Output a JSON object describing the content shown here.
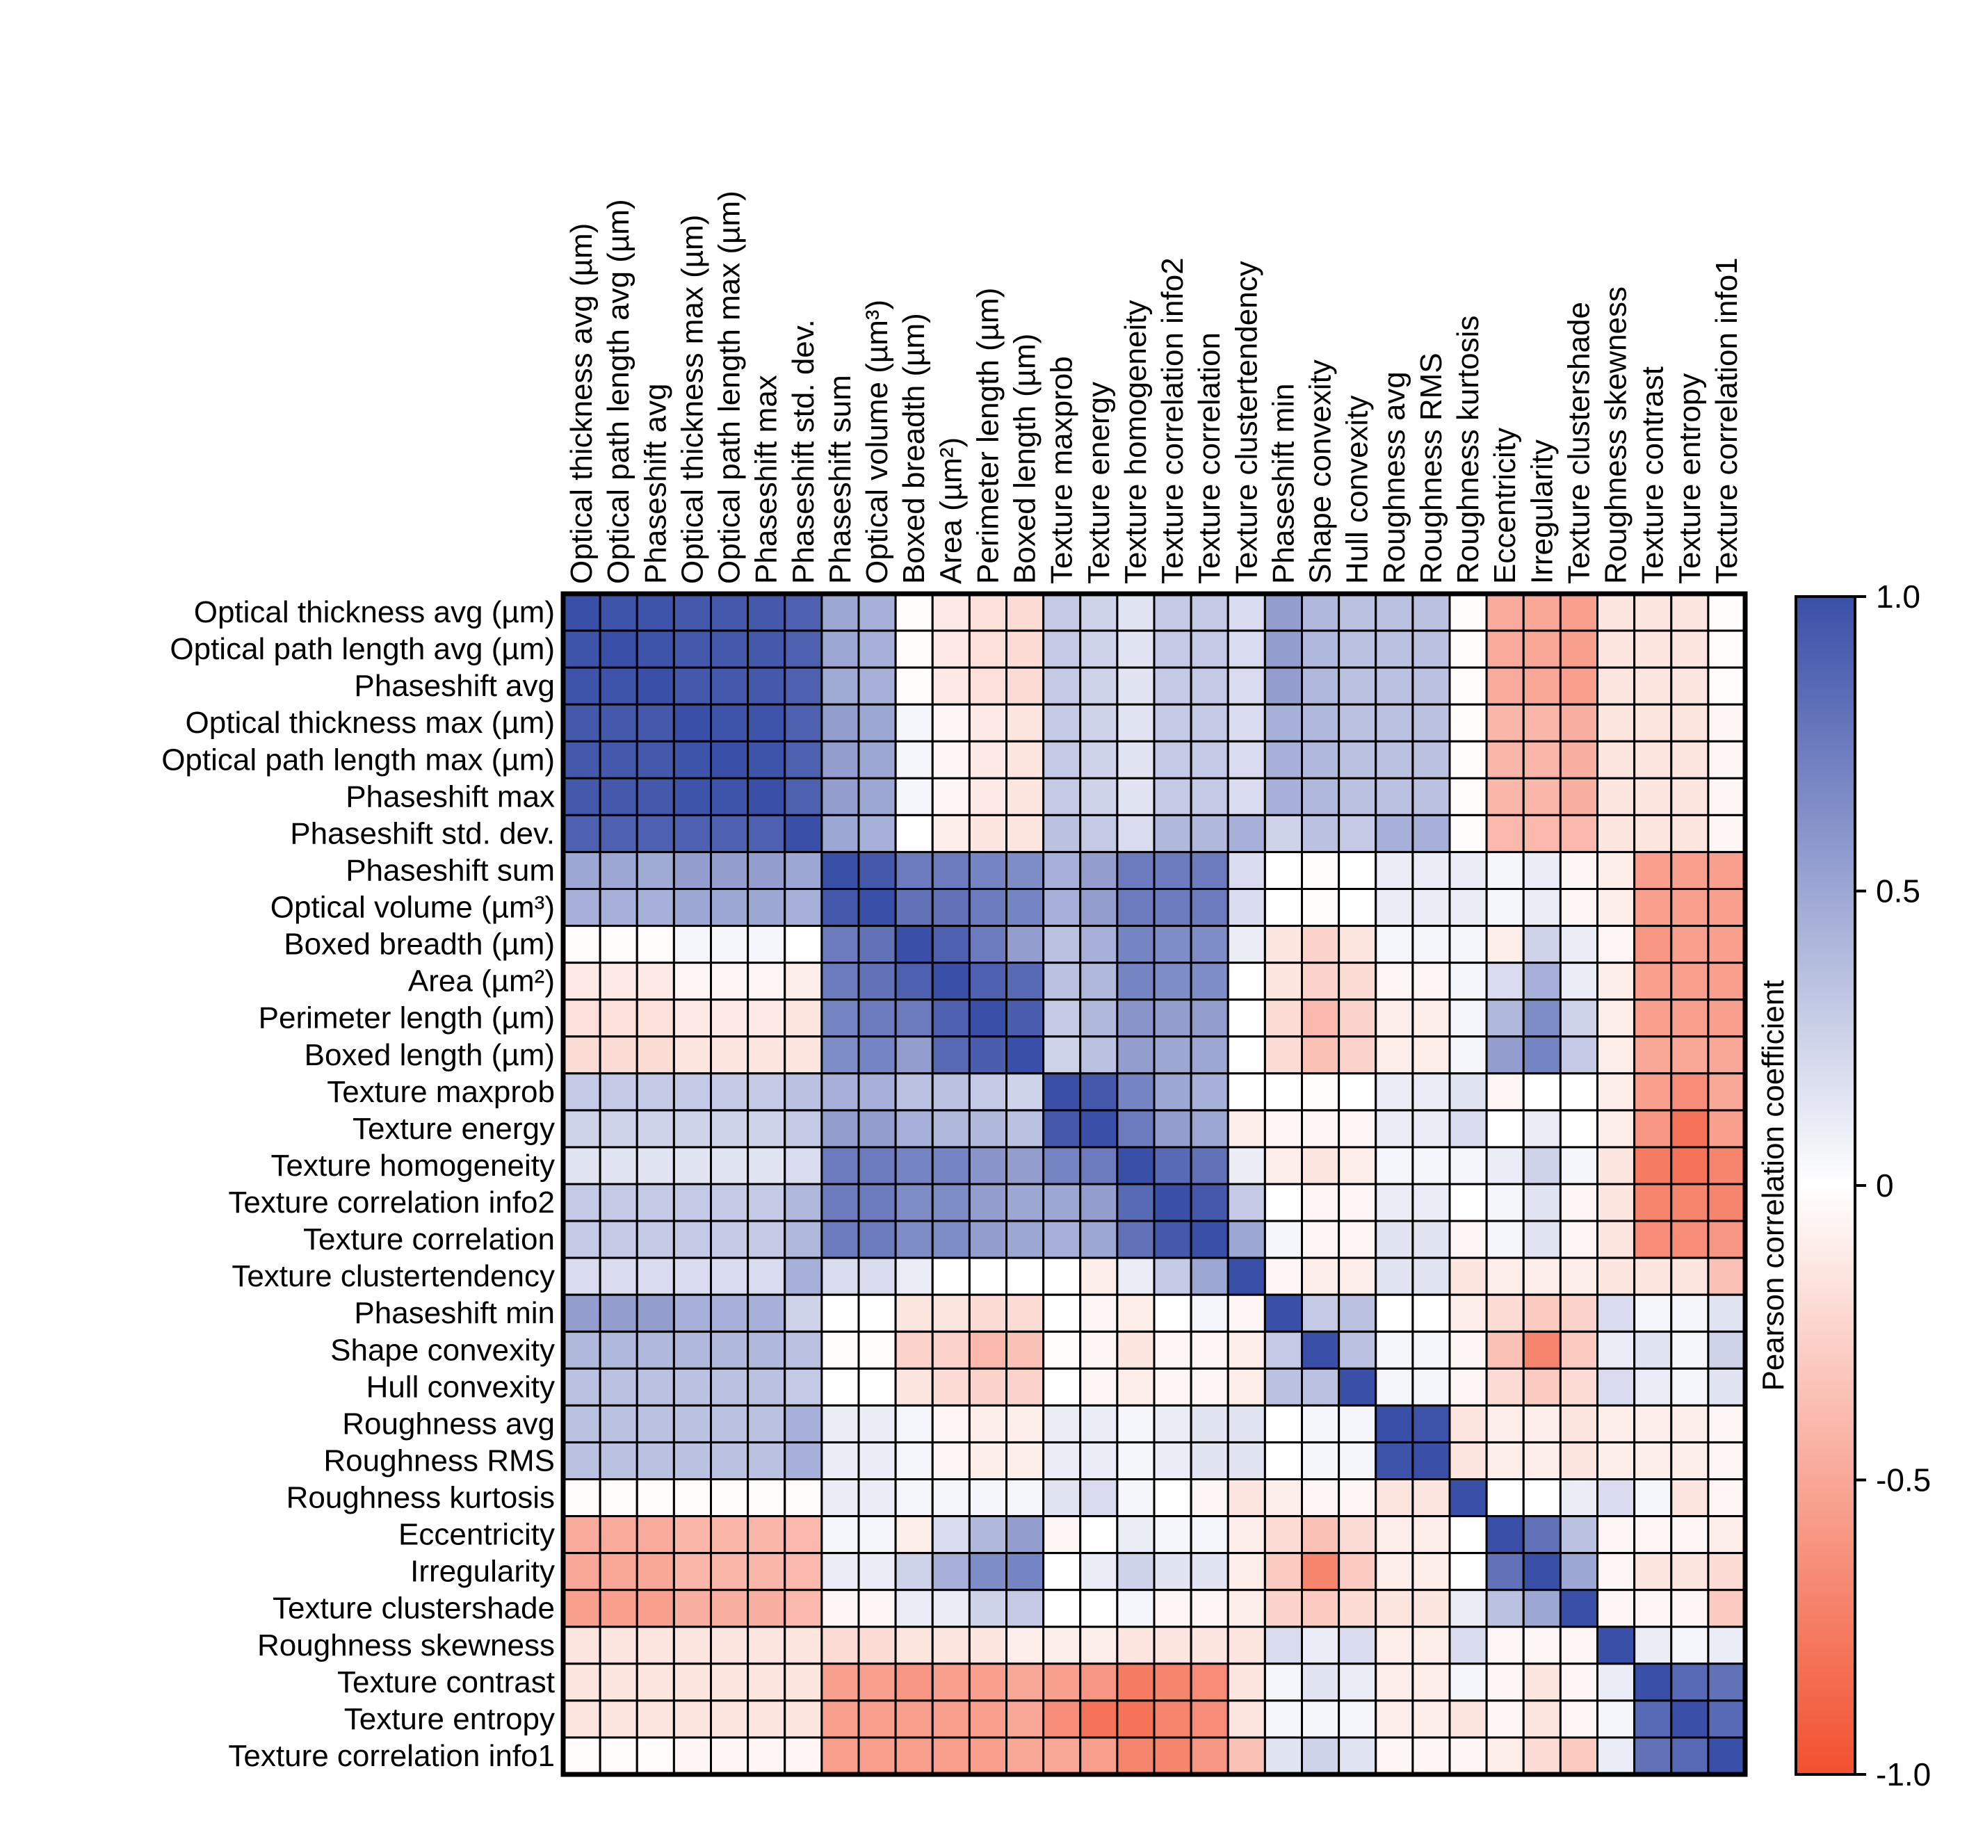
{
  "chart_data": {
    "type": "heatmap",
    "title": "",
    "labels": [
      "Optical thickness avg (µm)",
      "Optical path length avg (µm)",
      "Phaseshift avg",
      "Optical thickness max (µm)",
      "Optical path length max (µm)",
      "Phaseshift max",
      "Phaseshift std. dev.",
      "Phaseshift sum",
      "Optical volume (µm³)",
      "Boxed breadth (µm)",
      "Area (µm²)",
      "Perimeter length (µm)",
      "Boxed length (µm)",
      "Texture maxprob",
      "Texture energy",
      "Texture homogeneity",
      "Texture correlation info2",
      "Texture correlation",
      "Texture clustertendency",
      "Phaseshift min",
      "Shape convexity",
      "Hull convexity",
      "Roughness avg",
      "Roughness RMS",
      "Roughness kurtosis",
      "Eccentricity",
      "Irregularity",
      "Texture clustershade",
      "Roughness skewness",
      "Texture contrast",
      "Texture entropy",
      "Texture correlation info1"
    ],
    "matrix": [
      [
        1.0,
        0.98,
        0.98,
        0.95,
        0.95,
        0.95,
        0.9,
        0.5,
        0.45,
        -0.02,
        -0.12,
        -0.18,
        -0.2,
        0.3,
        0.25,
        0.15,
        0.3,
        0.3,
        0.2,
        0.55,
        0.4,
        0.35,
        0.35,
        0.35,
        -0.02,
        -0.48,
        -0.5,
        -0.55,
        -0.15,
        -0.15,
        -0.15,
        -0.02
      ],
      [
        0.98,
        1.0,
        0.98,
        0.95,
        0.95,
        0.95,
        0.9,
        0.5,
        0.45,
        -0.02,
        -0.12,
        -0.18,
        -0.2,
        0.3,
        0.25,
        0.15,
        0.3,
        0.3,
        0.2,
        0.55,
        0.4,
        0.35,
        0.35,
        0.35,
        -0.02,
        -0.48,
        -0.5,
        -0.55,
        -0.15,
        -0.15,
        -0.15,
        -0.02
      ],
      [
        0.98,
        0.98,
        1.0,
        0.95,
        0.95,
        0.95,
        0.9,
        0.48,
        0.45,
        -0.02,
        -0.12,
        -0.18,
        -0.2,
        0.3,
        0.25,
        0.15,
        0.3,
        0.3,
        0.2,
        0.55,
        0.4,
        0.35,
        0.35,
        0.35,
        -0.02,
        -0.48,
        -0.5,
        -0.55,
        -0.15,
        -0.15,
        -0.15,
        -0.02
      ],
      [
        0.95,
        0.95,
        0.95,
        1.0,
        0.98,
        0.98,
        0.9,
        0.55,
        0.5,
        0.05,
        -0.05,
        -0.12,
        -0.15,
        0.3,
        0.25,
        0.15,
        0.3,
        0.3,
        0.2,
        0.45,
        0.4,
        0.35,
        0.35,
        0.35,
        -0.02,
        -0.42,
        -0.42,
        -0.45,
        -0.15,
        -0.15,
        -0.15,
        -0.05
      ],
      [
        0.95,
        0.95,
        0.95,
        0.98,
        1.0,
        0.98,
        0.9,
        0.55,
        0.5,
        0.05,
        -0.05,
        -0.12,
        -0.15,
        0.3,
        0.25,
        0.15,
        0.3,
        0.3,
        0.2,
        0.45,
        0.4,
        0.35,
        0.35,
        0.35,
        -0.02,
        -0.42,
        -0.42,
        -0.45,
        -0.15,
        -0.15,
        -0.15,
        -0.05
      ],
      [
        0.95,
        0.95,
        0.95,
        0.98,
        0.98,
        1.0,
        0.9,
        0.55,
        0.5,
        0.05,
        -0.05,
        -0.12,
        -0.15,
        0.3,
        0.25,
        0.15,
        0.3,
        0.3,
        0.2,
        0.45,
        0.4,
        0.35,
        0.35,
        0.35,
        -0.02,
        -0.42,
        -0.42,
        -0.45,
        -0.15,
        -0.15,
        -0.15,
        -0.05
      ],
      [
        0.9,
        0.9,
        0.9,
        0.9,
        0.9,
        0.9,
        1.0,
        0.5,
        0.45,
        0.0,
        -0.1,
        -0.15,
        -0.15,
        0.35,
        0.3,
        0.2,
        0.4,
        0.4,
        0.45,
        0.25,
        0.35,
        0.3,
        0.45,
        0.45,
        -0.02,
        -0.4,
        -0.4,
        -0.4,
        -0.15,
        -0.15,
        -0.15,
        -0.05
      ],
      [
        0.5,
        0.5,
        0.48,
        0.55,
        0.55,
        0.55,
        0.5,
        1.0,
        0.95,
        0.75,
        0.75,
        0.7,
        0.65,
        0.45,
        0.55,
        0.75,
        0.75,
        0.75,
        0.2,
        0.0,
        -0.02,
        0.0,
        0.1,
        0.1,
        0.1,
        0.05,
        0.1,
        -0.05,
        -0.1,
        -0.55,
        -0.55,
        -0.55
      ],
      [
        0.45,
        0.45,
        0.45,
        0.5,
        0.5,
        0.5,
        0.45,
        0.95,
        1.0,
        0.8,
        0.8,
        0.75,
        0.7,
        0.45,
        0.55,
        0.75,
        0.75,
        0.75,
        0.2,
        0.0,
        -0.02,
        0.0,
        0.1,
        0.1,
        0.1,
        0.05,
        0.1,
        -0.05,
        -0.1,
        -0.55,
        -0.55,
        -0.55
      ],
      [
        -0.02,
        -0.02,
        -0.02,
        0.05,
        0.05,
        0.05,
        0.0,
        0.75,
        0.8,
        1.0,
        0.9,
        0.75,
        0.55,
        0.35,
        0.45,
        0.7,
        0.65,
        0.65,
        0.1,
        -0.15,
        -0.25,
        -0.15,
        0.05,
        0.05,
        0.05,
        -0.1,
        0.25,
        0.1,
        -0.05,
        -0.6,
        -0.55,
        -0.55
      ],
      [
        -0.12,
        -0.12,
        -0.12,
        -0.05,
        -0.05,
        -0.05,
        -0.1,
        0.75,
        0.8,
        0.9,
        1.0,
        0.9,
        0.85,
        0.35,
        0.4,
        0.7,
        0.65,
        0.65,
        0.0,
        -0.15,
        -0.25,
        -0.2,
        -0.05,
        -0.05,
        0.05,
        0.2,
        0.45,
        0.1,
        -0.1,
        -0.55,
        -0.55,
        -0.55
      ],
      [
        -0.18,
        -0.18,
        -0.18,
        -0.12,
        -0.12,
        -0.12,
        -0.15,
        0.7,
        0.75,
        0.75,
        0.9,
        1.0,
        0.92,
        0.3,
        0.4,
        0.6,
        0.55,
        0.55,
        0.0,
        -0.2,
        -0.4,
        -0.25,
        -0.1,
        -0.1,
        0.05,
        0.4,
        0.65,
        0.25,
        -0.1,
        -0.55,
        -0.55,
        -0.55
      ],
      [
        -0.2,
        -0.2,
        -0.2,
        -0.15,
        -0.15,
        -0.15,
        -0.15,
        0.65,
        0.7,
        0.55,
        0.85,
        0.92,
        1.0,
        0.25,
        0.35,
        0.55,
        0.5,
        0.5,
        0.0,
        -0.2,
        -0.35,
        -0.25,
        -0.1,
        -0.1,
        0.05,
        0.55,
        0.7,
        0.3,
        -0.1,
        -0.5,
        -0.5,
        -0.5
      ],
      [
        0.3,
        0.3,
        0.3,
        0.3,
        0.3,
        0.3,
        0.35,
        0.45,
        0.45,
        0.35,
        0.35,
        0.3,
        0.25,
        1.0,
        0.95,
        0.7,
        0.5,
        0.45,
        0.0,
        0.0,
        -0.02,
        0.0,
        0.1,
        0.1,
        0.15,
        -0.05,
        0.0,
        0.0,
        -0.1,
        -0.55,
        -0.65,
        -0.5
      ],
      [
        0.25,
        0.25,
        0.25,
        0.25,
        0.25,
        0.25,
        0.3,
        0.55,
        0.55,
        0.45,
        0.4,
        0.4,
        0.35,
        0.95,
        1.0,
        0.75,
        0.55,
        0.5,
        -0.1,
        -0.05,
        -0.05,
        -0.05,
        0.1,
        0.1,
        0.2,
        0.0,
        0.1,
        0.0,
        -0.1,
        -0.6,
        -0.8,
        -0.55
      ],
      [
        0.15,
        0.15,
        0.15,
        0.15,
        0.15,
        0.15,
        0.2,
        0.75,
        0.75,
        0.7,
        0.7,
        0.6,
        0.55,
        0.7,
        0.75,
        1.0,
        0.85,
        0.8,
        0.1,
        -0.1,
        -0.15,
        -0.1,
        0.05,
        0.05,
        0.05,
        0.1,
        0.25,
        0.05,
        -0.15,
        -0.75,
        -0.8,
        -0.7
      ],
      [
        0.3,
        0.3,
        0.3,
        0.3,
        0.3,
        0.3,
        0.4,
        0.75,
        0.75,
        0.65,
        0.65,
        0.55,
        0.5,
        0.5,
        0.55,
        0.85,
        1.0,
        0.95,
        0.3,
        0.0,
        -0.05,
        -0.05,
        0.1,
        0.1,
        0.0,
        0.05,
        0.15,
        -0.05,
        -0.15,
        -0.7,
        -0.7,
        -0.7
      ],
      [
        0.3,
        0.3,
        0.3,
        0.3,
        0.3,
        0.3,
        0.4,
        0.75,
        0.75,
        0.65,
        0.65,
        0.55,
        0.5,
        0.45,
        0.5,
        0.8,
        0.95,
        1.0,
        0.5,
        0.05,
        -0.05,
        -0.05,
        0.15,
        0.15,
        -0.05,
        0.05,
        0.15,
        -0.05,
        -0.15,
        -0.65,
        -0.65,
        -0.6
      ],
      [
        0.2,
        0.2,
        0.2,
        0.2,
        0.2,
        0.2,
        0.45,
        0.2,
        0.2,
        0.1,
        0.0,
        0.0,
        0.0,
        0.0,
        -0.1,
        0.1,
        0.3,
        0.5,
        1.0,
        -0.05,
        -0.1,
        -0.1,
        0.15,
        0.15,
        -0.15,
        -0.1,
        -0.1,
        -0.1,
        -0.15,
        -0.15,
        -0.15,
        -0.35
      ],
      [
        0.55,
        0.55,
        0.55,
        0.45,
        0.45,
        0.45,
        0.25,
        0.0,
        0.0,
        -0.15,
        -0.15,
        -0.2,
        -0.2,
        0.0,
        -0.05,
        -0.1,
        0.0,
        0.05,
        -0.05,
        1.0,
        0.3,
        0.35,
        0.0,
        0.0,
        -0.1,
        -0.2,
        -0.3,
        -0.25,
        0.2,
        0.05,
        0.05,
        0.15
      ],
      [
        0.4,
        0.4,
        0.4,
        0.4,
        0.4,
        0.4,
        0.35,
        -0.02,
        -0.02,
        -0.25,
        -0.25,
        -0.4,
        -0.35,
        -0.02,
        -0.05,
        -0.15,
        -0.05,
        -0.05,
        -0.1,
        0.3,
        1.0,
        0.35,
        0.05,
        0.05,
        -0.05,
        -0.35,
        -0.7,
        -0.3,
        0.1,
        0.15,
        0.05,
        0.25
      ],
      [
        0.35,
        0.35,
        0.35,
        0.35,
        0.35,
        0.35,
        0.3,
        0.0,
        0.0,
        -0.15,
        -0.2,
        -0.25,
        -0.25,
        0.0,
        -0.05,
        -0.1,
        -0.05,
        -0.05,
        -0.1,
        0.35,
        0.35,
        1.0,
        0.05,
        0.05,
        -0.05,
        -0.2,
        -0.3,
        -0.2,
        0.2,
        0.1,
        0.05,
        0.15
      ],
      [
        0.35,
        0.35,
        0.35,
        0.35,
        0.35,
        0.35,
        0.45,
        0.1,
        0.1,
        0.05,
        -0.05,
        -0.1,
        -0.1,
        0.1,
        0.1,
        0.05,
        0.1,
        0.15,
        0.15,
        0.0,
        0.05,
        0.05,
        1.0,
        0.98,
        -0.15,
        -0.1,
        -0.1,
        -0.15,
        -0.1,
        -0.1,
        -0.1,
        -0.05
      ],
      [
        0.35,
        0.35,
        0.35,
        0.35,
        0.35,
        0.35,
        0.45,
        0.1,
        0.1,
        0.05,
        -0.05,
        -0.1,
        -0.1,
        0.1,
        0.1,
        0.05,
        0.1,
        0.15,
        0.15,
        0.0,
        0.05,
        0.05,
        0.98,
        1.0,
        -0.15,
        -0.1,
        -0.1,
        -0.15,
        -0.1,
        -0.1,
        -0.1,
        -0.05
      ],
      [
        -0.02,
        -0.02,
        -0.02,
        -0.02,
        -0.02,
        -0.02,
        -0.02,
        0.1,
        0.1,
        0.05,
        0.05,
        0.05,
        0.05,
        0.15,
        0.2,
        0.05,
        0.0,
        -0.05,
        -0.15,
        -0.1,
        -0.05,
        -0.05,
        -0.15,
        -0.15,
        1.0,
        0.0,
        0.0,
        0.1,
        0.2,
        0.05,
        -0.15,
        -0.05
      ],
      [
        -0.48,
        -0.48,
        -0.48,
        -0.42,
        -0.42,
        -0.42,
        -0.4,
        0.05,
        0.05,
        -0.1,
        0.2,
        0.4,
        0.55,
        -0.05,
        0.0,
        0.1,
        0.05,
        0.05,
        -0.1,
        -0.2,
        -0.35,
        -0.2,
        -0.1,
        -0.1,
        0.0,
        1.0,
        0.8,
        0.35,
        -0.05,
        -0.05,
        -0.05,
        -0.1
      ],
      [
        -0.5,
        -0.5,
        -0.5,
        -0.42,
        -0.42,
        -0.42,
        -0.4,
        0.1,
        0.1,
        0.25,
        0.45,
        0.65,
        0.7,
        0.0,
        0.1,
        0.25,
        0.15,
        0.15,
        -0.1,
        -0.3,
        -0.7,
        -0.3,
        -0.1,
        -0.1,
        0.0,
        0.8,
        1.0,
        0.5,
        -0.05,
        -0.15,
        -0.15,
        -0.2
      ],
      [
        -0.55,
        -0.55,
        -0.55,
        -0.45,
        -0.45,
        -0.45,
        -0.4,
        -0.05,
        -0.05,
        0.1,
        0.1,
        0.25,
        0.3,
        0.0,
        0.0,
        0.05,
        -0.05,
        -0.05,
        -0.1,
        -0.25,
        -0.3,
        -0.2,
        -0.15,
        -0.15,
        0.1,
        0.35,
        0.5,
        1.0,
        -0.05,
        -0.05,
        -0.05,
        -0.3
      ],
      [
        -0.15,
        -0.15,
        -0.15,
        -0.15,
        -0.15,
        -0.15,
        -0.15,
        -0.2,
        -0.2,
        -0.15,
        -0.15,
        -0.15,
        -0.1,
        -0.1,
        -0.1,
        -0.15,
        -0.15,
        -0.15,
        -0.15,
        0.2,
        0.1,
        0.2,
        -0.1,
        -0.1,
        0.2,
        -0.05,
        -0.05,
        -0.05,
        1.0,
        0.1,
        0.05,
        0.1
      ],
      [
        -0.15,
        -0.15,
        -0.15,
        -0.15,
        -0.15,
        -0.15,
        -0.15,
        -0.55,
        -0.55,
        -0.6,
        -0.55,
        -0.55,
        -0.5,
        -0.55,
        -0.6,
        -0.75,
        -0.7,
        -0.65,
        -0.15,
        0.05,
        0.15,
        0.1,
        -0.1,
        -0.1,
        0.05,
        -0.05,
        -0.15,
        -0.05,
        0.1,
        1.0,
        0.85,
        0.8
      ],
      [
        -0.15,
        -0.15,
        -0.15,
        -0.15,
        -0.15,
        -0.15,
        -0.15,
        -0.55,
        -0.55,
        -0.55,
        -0.55,
        -0.55,
        -0.5,
        -0.65,
        -0.8,
        -0.8,
        -0.7,
        -0.65,
        -0.15,
        0.05,
        0.05,
        0.05,
        -0.1,
        -0.1,
        -0.15,
        -0.05,
        -0.15,
        -0.05,
        0.05,
        0.85,
        1.0,
        0.85
      ],
      [
        -0.02,
        -0.02,
        -0.02,
        -0.05,
        -0.05,
        -0.05,
        -0.05,
        -0.55,
        -0.55,
        -0.55,
        -0.55,
        -0.55,
        -0.5,
        -0.5,
        -0.55,
        -0.7,
        -0.7,
        -0.6,
        -0.35,
        0.15,
        0.25,
        0.15,
        -0.05,
        -0.05,
        -0.05,
        -0.1,
        -0.2,
        -0.3,
        0.1,
        0.8,
        0.85,
        1.0
      ]
    ],
    "colorbar": {
      "label": "Pearson correlation coefficient",
      "ticks": [
        1.0,
        0.5,
        0,
        -0.5,
        -1.0
      ],
      "tick_labels": [
        "1.0",
        "0.5",
        "0",
        "-0.5",
        "-1.0"
      ],
      "range": [
        -1.0,
        1.0
      ]
    },
    "colors": {
      "positive": "#3a4fa8",
      "neutral": "#ffffff",
      "negative": "#f2502f",
      "grid": "#000000"
    }
  }
}
